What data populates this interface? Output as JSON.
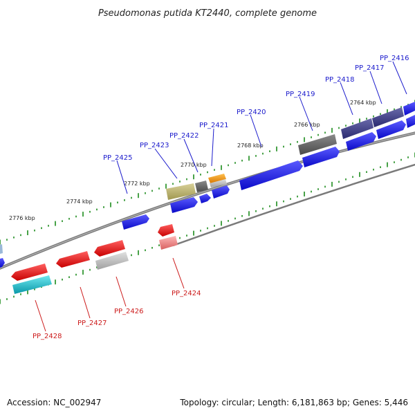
{
  "title": "Pseudomonas putida KT2440, complete genome",
  "footer": {
    "accession": "Accession: NC_002947",
    "summary": "Topology: circular; Length: 6,181,863 bp; Genes: 5,446"
  },
  "colors": {
    "backbone": "#777777",
    "tick": "#1a8a1a",
    "forward_label": "#1a1acc",
    "reverse_label": "#cc1a1a",
    "blue": "#1414e6",
    "navy": "#3a3a8c",
    "dark_gray": "#666666",
    "light_gray": "#b8b8b8",
    "orange": "#f09a14",
    "olive": "#b8b070",
    "red": "#e61414",
    "pink": "#ee8888",
    "cyan": "#18b8c8"
  },
  "kbp_labels": [
    "2764 kbp",
    "2766 kbp",
    "2768 kbp",
    "2770 kbp",
    "2772 kbp",
    "2774 kbp",
    "2776 kbp"
  ],
  "forward_genes": [
    "PP_2416",
    "PP_2417",
    "PP_2418",
    "PP_2419",
    "PP_2420",
    "PP_2421",
    "PP_2422",
    "PP_2423",
    "PP_2425"
  ],
  "reverse_genes": [
    "PP_2424",
    "PP_2426",
    "PP_2427",
    "PP_2428"
  ]
}
